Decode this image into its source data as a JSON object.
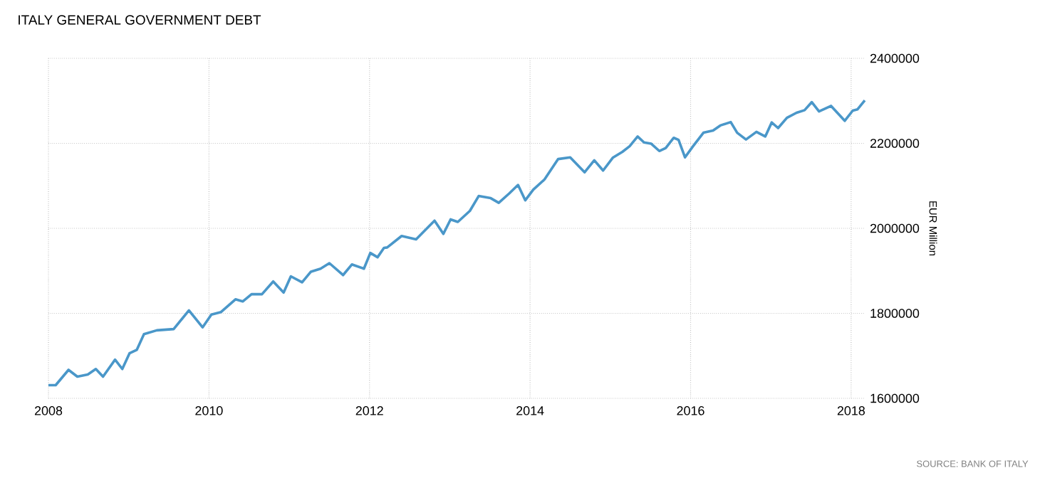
{
  "chart_data": {
    "type": "line",
    "title": "ITALY GENERAL GOVERNMENT DEBT",
    "ylabel": "EUR Million",
    "annotations": [
      "SOURCE: BANK OF ITALY"
    ],
    "x": [
      2008.0,
      2008.09,
      2008.25,
      2008.36,
      2008.49,
      2008.59,
      2008.68,
      2008.83,
      2008.92,
      2009.01,
      2009.1,
      2009.19,
      2009.35,
      2009.56,
      2009.75,
      2009.92,
      2010.03,
      2010.15,
      2010.33,
      2010.42,
      2010.53,
      2010.66,
      2010.8,
      2010.93,
      2011.02,
      2011.16,
      2011.27,
      2011.39,
      2011.5,
      2011.67,
      2011.78,
      2011.93,
      2012.01,
      2012.1,
      2012.18,
      2012.22,
      2012.4,
      2012.58,
      2012.81,
      2012.92,
      2013.01,
      2013.1,
      2013.25,
      2013.36,
      2013.51,
      2013.61,
      2013.74,
      2013.85,
      2013.94,
      2014.04,
      2014.18,
      2014.35,
      2014.5,
      2014.68,
      2014.8,
      2014.91,
      2015.03,
      2015.15,
      2015.24,
      2015.34,
      2015.42,
      2015.51,
      2015.61,
      2015.69,
      2015.79,
      2015.85,
      2015.93,
      2016.03,
      2016.16,
      2016.28,
      2016.37,
      2016.5,
      2016.58,
      2016.69,
      2016.82,
      2016.93,
      2017.01,
      2017.09,
      2017.2,
      2017.32,
      2017.42,
      2017.51,
      2017.6,
      2017.75,
      2017.92,
      2018.02,
      2018.08,
      2018.17
    ],
    "series": [
      {
        "color": "#4a97c9",
        "values": [
          1631000,
          1631000,
          1667000,
          1651000,
          1656000,
          1669000,
          1651000,
          1691000,
          1669000,
          1706000,
          1714000,
          1751000,
          1760000,
          1763000,
          1807000,
          1767000,
          1797000,
          1803000,
          1833000,
          1828000,
          1845000,
          1845000,
          1875000,
          1849000,
          1887000,
          1873000,
          1898000,
          1905000,
          1918000,
          1890000,
          1915000,
          1905000,
          1942000,
          1932000,
          1954000,
          1955000,
          1982000,
          1974000,
          2018000,
          1987000,
          2021000,
          2015000,
          2041000,
          2076000,
          2071000,
          2060000,
          2082000,
          2102000,
          2066000,
          2091000,
          2115000,
          2163000,
          2167000,
          2132000,
          2160000,
          2136000,
          2166000,
          2180000,
          2193000,
          2216000,
          2202000,
          2199000,
          2182000,
          2189000,
          2213000,
          2208000,
          2167000,
          2193000,
          2225000,
          2230000,
          2242000,
          2250000,
          2225000,
          2209000,
          2227000,
          2216000,
          2249000,
          2236000,
          2260000,
          2272000,
          2278000,
          2297000,
          2275000,
          2288000,
          2253000,
          2277000,
          2280000,
          2301000
        ]
      }
    ],
    "xlim": [
      2008,
      2018.17
    ],
    "xticks": [
      2008,
      2010,
      2012,
      2014,
      2016,
      2018
    ],
    "ylim": [
      1600000,
      2400000
    ],
    "yticks": [
      1600000,
      1800000,
      2000000,
      2200000,
      2400000
    ],
    "grid": true,
    "marker": "none",
    "line_style": "solid"
  }
}
